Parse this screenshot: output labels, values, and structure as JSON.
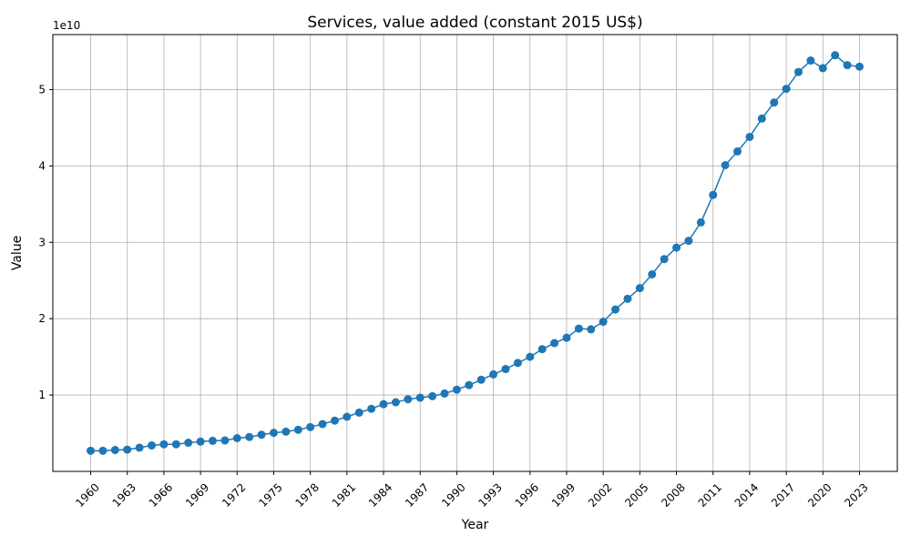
{
  "chart_data": {
    "type": "line",
    "title": "Services, value added (constant 2015 US$)",
    "xlabel": "Year",
    "ylabel": "Value",
    "y_offset_label": "1e10",
    "grid": true,
    "line_color": "#1f77b4",
    "marker": "circle",
    "xlim": [
      1956.9,
      2026.1
    ],
    "ylim": [
      0,
      57200000000
    ],
    "x_ticks": [
      "1960",
      "1963",
      "1966",
      "1969",
      "1972",
      "1975",
      "1978",
      "1981",
      "1984",
      "1987",
      "1990",
      "1993",
      "1996",
      "1999",
      "2002",
      "2005",
      "2008",
      "2011",
      "2014",
      "2017",
      "2020",
      "2023"
    ],
    "y_ticks": [
      10000000000,
      20000000000,
      30000000000,
      40000000000,
      50000000000
    ],
    "y_tick_labels": [
      "1",
      "2",
      "3",
      "4",
      "5"
    ],
    "series": [
      {
        "x": [
          1960,
          1961,
          1962,
          1963,
          1964,
          1965,
          1966,
          1967,
          1968,
          1969,
          1970,
          1971,
          1972,
          1973,
          1974,
          1975,
          1976,
          1977,
          1978,
          1979,
          1980,
          1981,
          1982,
          1983,
          1984,
          1985,
          1986,
          1987,
          1988,
          1989,
          1990,
          1991,
          1992,
          1993,
          1994,
          1995,
          1996,
          1997,
          1998,
          1999,
          2000,
          2001,
          2002,
          2003,
          2004,
          2005,
          2006,
          2007,
          2008,
          2009,
          2010,
          2011,
          2012,
          2013,
          2014,
          2015,
          2016,
          2017,
          2018,
          2019,
          2020,
          2021,
          2022,
          2023
        ],
        "values": [
          2700000000,
          2700000000,
          2800000000,
          2850000000,
          3100000000,
          3400000000,
          3550000000,
          3550000000,
          3750000000,
          3900000000,
          4000000000,
          4050000000,
          4350000000,
          4500000000,
          4800000000,
          5050000000,
          5200000000,
          5450000000,
          5800000000,
          6200000000,
          6650000000,
          7150000000,
          7700000000,
          8200000000,
          8800000000,
          9050000000,
          9450000000,
          9650000000,
          9850000000,
          10200000000,
          10700000000,
          11300000000,
          12000000000,
          12700000000,
          13400000000,
          14200000000,
          15000000000,
          16000000000,
          16800000000,
          17500000000,
          18700000000,
          18600000000,
          19600000000,
          21200000000,
          22600000000,
          24000000000,
          25800000000,
          27800000000,
          29300000000,
          30200000000,
          32600000000,
          36200000000,
          40100000000,
          41900000000,
          43800000000,
          46200000000,
          48300000000,
          50100000000,
          52300000000,
          53800000000,
          52800000000,
          54500000000,
          53200000000,
          53000000000
        ]
      }
    ]
  }
}
